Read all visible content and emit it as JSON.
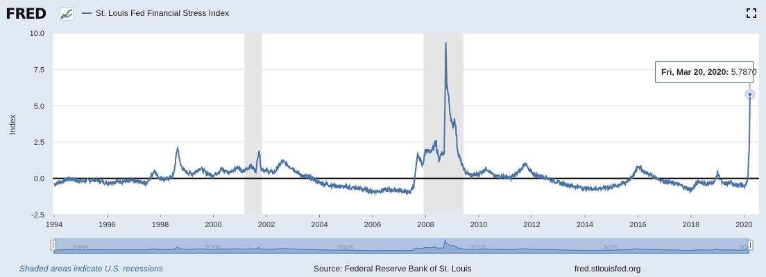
{
  "header": {
    "logo_text": "FRED",
    "series_legend": "St. Louis Fed Financial Stress Index"
  },
  "footer": {
    "recession_note": "Shaded areas indicate U.S. recessions",
    "source": "Source: Federal Reserve Bank of St. Louis",
    "url": "fred.stlouisfed.org"
  },
  "tooltip": {
    "date": "Fri, Mar 20, 2020:",
    "value": "5.7870"
  },
  "navigator": {
    "labels": [
      "1995",
      "2000",
      "2005",
      "2010",
      "2015",
      "20"
    ]
  },
  "colors": {
    "series": "#4572a7",
    "recession": "#e5e5e5",
    "background": "#e1e9f0"
  },
  "chart_data": {
    "type": "line",
    "title": "St. Louis Fed Financial Stress Index",
    "ylabel": "Index",
    "xlabel": "",
    "xlim": [
      1994.0,
      2020.25
    ],
    "ylim": [
      -2.5,
      10.0
    ],
    "yticks": [
      "-2.5",
      "0.0",
      "2.5",
      "5.0",
      "7.5",
      "10.0"
    ],
    "xticks": [
      "1994",
      "1996",
      "1998",
      "2000",
      "2002",
      "2004",
      "2006",
      "2008",
      "2010",
      "2012",
      "2014",
      "2016",
      "2018",
      "2020"
    ],
    "grid": "horizontal",
    "zero_line": 0,
    "recessions": [
      [
        2001.17,
        2001.83
      ],
      [
        2007.92,
        2009.42
      ]
    ],
    "series": [
      {
        "x": [
          1994.0,
          1994.3,
          1994.6,
          1995.0,
          1995.5,
          1996.0,
          1996.5,
          1997.0,
          1997.5,
          1997.8,
          1997.9,
          1998.2,
          1998.5,
          1998.65,
          1998.75,
          1998.9,
          1999.2,
          1999.5,
          1999.8,
          2000.0,
          2000.3,
          2000.6,
          2000.9,
          2001.1,
          2001.4,
          2001.6,
          2001.72,
          2001.8,
          2002.0,
          2002.3,
          2002.6,
          2002.8,
          2003.0,
          2003.3,
          2003.6,
          2004.0,
          2004.5,
          2005.0,
          2005.5,
          2006.0,
          2006.5,
          2007.0,
          2007.4,
          2007.55,
          2007.6,
          2007.7,
          2007.9,
          2008.0,
          2008.2,
          2008.4,
          2008.5,
          2008.6,
          2008.7,
          2008.76,
          2008.8,
          2008.9,
          2009.0,
          2009.1,
          2009.2,
          2009.3,
          2009.4,
          2009.5,
          2009.7,
          2010.0,
          2010.3,
          2010.6,
          2010.9,
          2011.2,
          2011.6,
          2011.75,
          2011.9,
          2012.2,
          2012.5,
          2013.0,
          2013.5,
          2014.0,
          2014.5,
          2015.0,
          2015.5,
          2015.8,
          2016.0,
          2016.2,
          2016.5,
          2017.0,
          2017.5,
          2018.0,
          2018.3,
          2018.6,
          2018.9,
          2019.0,
          2019.2,
          2019.5,
          2019.8,
          2020.0,
          2020.1,
          2020.15,
          2020.2,
          2020.22
        ],
        "y": [
          -0.4,
          -0.2,
          0.0,
          -0.2,
          -0.1,
          -0.3,
          -0.2,
          -0.2,
          -0.3,
          0.6,
          0.1,
          -0.1,
          0.2,
          2.2,
          1.0,
          0.5,
          0.3,
          0.7,
          0.3,
          0.2,
          0.6,
          0.4,
          0.8,
          0.4,
          0.9,
          0.5,
          2.0,
          0.7,
          0.5,
          0.4,
          1.2,
          0.9,
          0.7,
          0.2,
          0.1,
          -0.3,
          -0.5,
          -0.6,
          -0.7,
          -0.9,
          -0.8,
          -0.8,
          -1.0,
          -0.5,
          0.2,
          1.6,
          0.9,
          2.1,
          1.8,
          2.4,
          1.3,
          1.7,
          1.6,
          9.2,
          6.5,
          5.0,
          3.5,
          4.2,
          2.0,
          1.3,
          0.8,
          0.4,
          0.2,
          0.3,
          0.7,
          0.1,
          0.2,
          0.0,
          0.6,
          1.1,
          0.5,
          0.2,
          0.1,
          -0.3,
          -0.5,
          -0.7,
          -0.7,
          -0.6,
          -0.3,
          0.1,
          0.9,
          0.5,
          0.2,
          -0.2,
          -0.4,
          -0.8,
          -0.2,
          -0.4,
          -0.2,
          0.4,
          -0.4,
          -0.3,
          -0.5,
          -0.5,
          -0.4,
          0.2,
          3.0,
          5.787
        ]
      }
    ]
  }
}
